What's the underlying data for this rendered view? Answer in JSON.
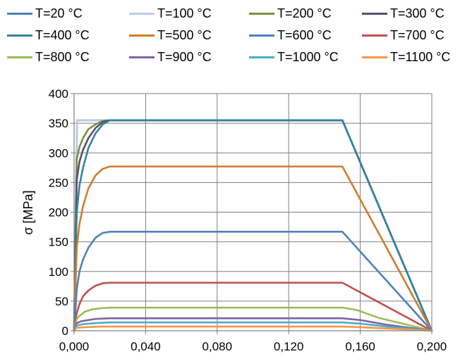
{
  "chart_data": {
    "type": "line",
    "xlabel": "",
    "ylabel": "σ [MPa]",
    "xlim": [
      0,
      0.2
    ],
    "ylim": [
      0,
      400
    ],
    "grid": true,
    "legend_placement": "top",
    "x_tick_labels": [
      "0,000",
      "0,040",
      "0,080",
      "0,120",
      "0,160",
      "0,200"
    ],
    "x_tick_values": [
      0,
      0.04,
      0.08,
      0.12,
      0.16,
      0.2
    ],
    "y_tick_labels": [
      "0",
      "50",
      "100",
      "150",
      "200",
      "250",
      "300",
      "350",
      "400"
    ],
    "y_tick_values": [
      0,
      50,
      100,
      150,
      200,
      250,
      300,
      350,
      400
    ],
    "series": [
      {
        "name": "T=20 °C",
        "color": "#4a7ebb",
        "points": [
          [
            0,
            0
          ],
          [
            0.0017,
            355
          ],
          [
            0.15,
            355
          ],
          [
            0.2,
            0
          ]
        ]
      },
      {
        "name": "T=100 °C",
        "color": "#b9cde5",
        "points": [
          [
            0,
            0
          ],
          [
            0.0017,
            355
          ],
          [
            0.15,
            355
          ],
          [
            0.2,
            0
          ]
        ]
      },
      {
        "name": "T=200 °C",
        "color": "#77933c",
        "points": [
          [
            0,
            0
          ],
          [
            0.0015,
            290
          ],
          [
            0.003,
            310
          ],
          [
            0.005,
            325
          ],
          [
            0.008,
            340
          ],
          [
            0.012,
            348
          ],
          [
            0.016,
            354
          ],
          [
            0.02,
            355
          ],
          [
            0.15,
            355
          ],
          [
            0.2,
            0
          ]
        ]
      },
      {
        "name": "T=300 °C",
        "color": "#604a7b",
        "points": [
          [
            0,
            0
          ],
          [
            0.0015,
            255
          ],
          [
            0.003,
            285
          ],
          [
            0.005,
            305
          ],
          [
            0.008,
            325
          ],
          [
            0.012,
            342
          ],
          [
            0.016,
            352
          ],
          [
            0.02,
            355
          ],
          [
            0.15,
            355
          ],
          [
            0.2,
            0
          ]
        ]
      },
      {
        "name": "T=400 °C",
        "color": "#31859c",
        "points": [
          [
            0,
            0
          ],
          [
            0.0015,
            200
          ],
          [
            0.003,
            245
          ],
          [
            0.005,
            275
          ],
          [
            0.008,
            308
          ],
          [
            0.012,
            333
          ],
          [
            0.016,
            348
          ],
          [
            0.02,
            355
          ],
          [
            0.15,
            355
          ],
          [
            0.2,
            0
          ]
        ]
      },
      {
        "name": "T=500 °C",
        "color": "#d07d2e",
        "points": [
          [
            0,
            0
          ],
          [
            0.0015,
            140
          ],
          [
            0.003,
            180
          ],
          [
            0.005,
            210
          ],
          [
            0.008,
            240
          ],
          [
            0.012,
            262
          ],
          [
            0.016,
            273
          ],
          [
            0.02,
            277
          ],
          [
            0.15,
            277
          ],
          [
            0.2,
            0
          ]
        ]
      },
      {
        "name": "T=600 °C",
        "color": "#4f81bd",
        "points": [
          [
            0,
            0
          ],
          [
            0.0015,
            70
          ],
          [
            0.003,
            100
          ],
          [
            0.005,
            120
          ],
          [
            0.008,
            140
          ],
          [
            0.012,
            157
          ],
          [
            0.016,
            165
          ],
          [
            0.02,
            167
          ],
          [
            0.15,
            167
          ],
          [
            0.2,
            0
          ]
        ]
      },
      {
        "name": "T=700 °C",
        "color": "#c0504d",
        "points": [
          [
            0,
            0
          ],
          [
            0.0015,
            30
          ],
          [
            0.003,
            45
          ],
          [
            0.005,
            58
          ],
          [
            0.008,
            68
          ],
          [
            0.012,
            76
          ],
          [
            0.016,
            80
          ],
          [
            0.02,
            81
          ],
          [
            0.15,
            81
          ],
          [
            0.2,
            0
          ]
        ]
      },
      {
        "name": "T=800 °C",
        "color": "#9bbb59",
        "points": [
          [
            0,
            0
          ],
          [
            0.0015,
            20
          ],
          [
            0.003,
            25
          ],
          [
            0.006,
            32
          ],
          [
            0.01,
            36
          ],
          [
            0.015,
            38
          ],
          [
            0.02,
            39
          ],
          [
            0.15,
            39
          ],
          [
            0.158,
            35
          ],
          [
            0.17,
            22
          ],
          [
            0.2,
            0
          ]
        ]
      },
      {
        "name": "T=900 °C",
        "color": "#8064a2",
        "points": [
          [
            0,
            0
          ],
          [
            0.0015,
            13
          ],
          [
            0.004,
            16
          ],
          [
            0.008,
            18
          ],
          [
            0.012,
            20
          ],
          [
            0.02,
            21
          ],
          [
            0.15,
            21
          ],
          [
            0.16,
            18
          ],
          [
            0.175,
            10
          ],
          [
            0.2,
            0
          ]
        ]
      },
      {
        "name": "T=1000 °C",
        "color": "#4bacc6",
        "points": [
          [
            0,
            0
          ],
          [
            0.0015,
            9
          ],
          [
            0.005,
            11
          ],
          [
            0.012,
            13
          ],
          [
            0.02,
            14
          ],
          [
            0.15,
            14
          ],
          [
            0.16,
            12
          ],
          [
            0.175,
            7
          ],
          [
            0.2,
            0
          ]
        ]
      },
      {
        "name": "T=1100 °C",
        "color": "#f79646",
        "points": [
          [
            0,
            0
          ],
          [
            0.0015,
            5
          ],
          [
            0.006,
            6
          ],
          [
            0.015,
            7
          ],
          [
            0.02,
            7
          ],
          [
            0.15,
            7
          ],
          [
            0.16,
            6
          ],
          [
            0.18,
            3
          ],
          [
            0.2,
            0
          ]
        ]
      }
    ]
  }
}
